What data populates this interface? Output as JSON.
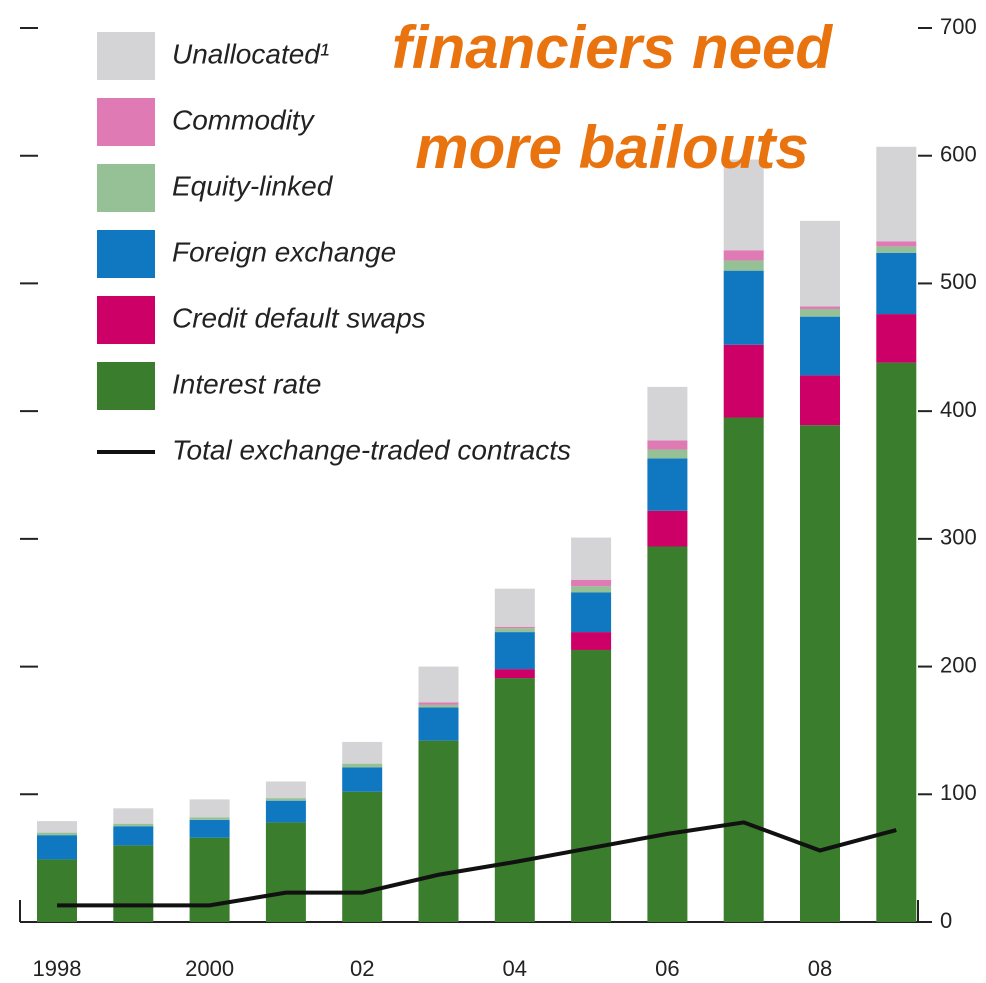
{
  "chart_data": {
    "type": "bar",
    "stacked": true,
    "annotation": [
      "financiers need",
      "more bailouts"
    ],
    "categories": [
      "1998",
      null,
      "2000",
      null,
      "02",
      null,
      "04",
      null,
      "06",
      null,
      "08",
      null
    ],
    "series": [
      {
        "name": "Interest rate",
        "color": "#3a7d2c",
        "values": [
          49,
          60,
          66,
          78,
          102,
          142,
          191,
          213,
          294,
          395,
          389,
          438
        ]
      },
      {
        "name": "Credit default swaps",
        "color": "#cc0066",
        "values": [
          0,
          0,
          0,
          0,
          0,
          0,
          7,
          14,
          28,
          57,
          39,
          38
        ]
      },
      {
        "name": "Foreign exchange",
        "color": "#0f78c0",
        "values": [
          19,
          15,
          14,
          17,
          19,
          26,
          29,
          31,
          41,
          58,
          46,
          48
        ]
      },
      {
        "name": "Equity-linked",
        "color": "#96c196",
        "values": [
          2,
          2,
          2,
          2,
          3,
          2,
          3,
          5,
          7,
          8,
          6,
          5
        ]
      },
      {
        "name": "Commodity",
        "color": "#e07ab4",
        "values": [
          0,
          0,
          0,
          0,
          0,
          2,
          1,
          5,
          7,
          8,
          2,
          4
        ]
      },
      {
        "name": "Unallocated¹",
        "color": "#d4d4d6",
        "values": [
          9,
          12,
          14,
          13,
          17,
          28,
          30,
          33,
          42,
          71,
          67,
          74
        ]
      },
      {
        "name": "Total exchange-traded contracts",
        "type": "line",
        "color": "#111111",
        "values": [
          13,
          13,
          13,
          23,
          23,
          37,
          47,
          58,
          69,
          78,
          56,
          72
        ]
      }
    ],
    "ylim": [
      0,
      700
    ],
    "yticks": [
      0,
      100,
      200,
      300,
      400,
      500,
      600,
      700
    ]
  }
}
